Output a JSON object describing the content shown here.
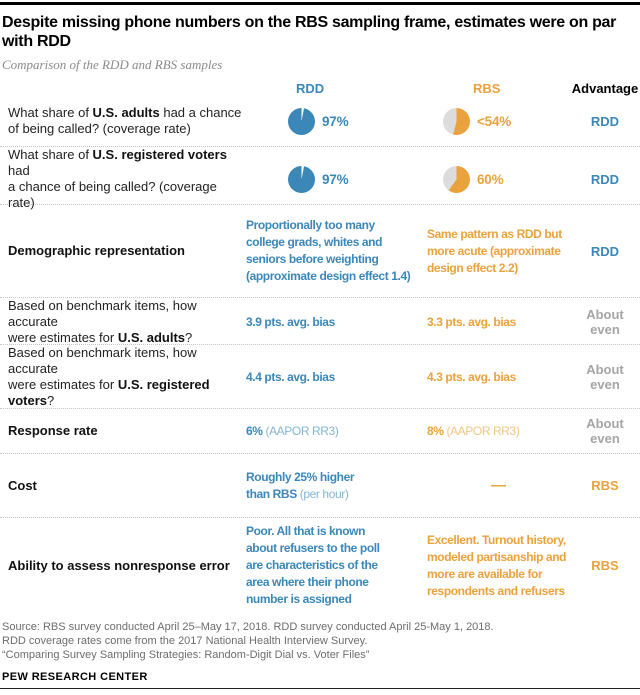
{
  "header": {
    "title": "Despite missing phone numbers on the RBS sampling frame, estimates were on par with RDD",
    "subtitle": "Comparison of the RDD and RBS samples"
  },
  "columns": {
    "rdd": "RDD",
    "rbs": "RBS",
    "advantage": "Advantage"
  },
  "colors": {
    "rdd_blue": "#3a87b8",
    "rdd_blue_light": "#85b5d3",
    "rbs_orange": "#eaa23c",
    "rbs_orange_light": "#f2c67f",
    "pie_gray": "#dcdcdc",
    "advantage_gray": "#a5a5a5"
  },
  "rows": [
    {
      "label": {
        "pre": "What share of ",
        "bold": "U.S. adults",
        "post": " had a chance\nof being called? (coverage rate)"
      },
      "rdd": {
        "value": "97%",
        "pie": [
          {
            "color": "#ffffff",
            "to": 3
          },
          {
            "color": "#3a87b8",
            "to": 100
          }
        ]
      },
      "rbs": {
        "value": "<54%",
        "pie": [
          {
            "color": "#eaa23c",
            "to": 54
          },
          {
            "color": "#dcdcdc",
            "to": 100
          }
        ]
      },
      "adv": "RDD"
    },
    {
      "label": {
        "pre": "What share of ",
        "bold": "U.S. registered voters",
        "post": " had\na chance of being called? (coverage rate)"
      },
      "rdd": {
        "value": "97%",
        "pie": [
          {
            "color": "#ffffff",
            "to": 3
          },
          {
            "color": "#3a87b8",
            "to": 100
          }
        ]
      },
      "rbs": {
        "value": "60%",
        "pie": [
          {
            "color": "#eaa23c",
            "to": 60
          },
          {
            "color": "#dcdcdc",
            "to": 100
          }
        ]
      },
      "adv": "RDD"
    },
    {
      "label": {
        "pre": "",
        "bold": "Demographic representation",
        "post": ""
      },
      "rdd": {
        "text": "Proportionally too many\ncollege grads, whites and\nseniors before weighting\n(approximate design effect 1.4)"
      },
      "rbs": {
        "text": "Same pattern as RDD but\nmore acute (approximate\ndesign effect 2.2)"
      },
      "adv": "RDD"
    },
    {
      "label": {
        "pre": "Based on benchmark items, how accurate\nwere estimates for ",
        "bold": "U.S. adults",
        "post": "?"
      },
      "rdd": {
        "text": "3.9 pts. avg. bias"
      },
      "rbs": {
        "text": "3.3 pts. avg. bias"
      },
      "adv": "About\neven"
    },
    {
      "label": {
        "pre": "Based on benchmark items, how accurate\nwere estimates for ",
        "bold": "U.S. registered voters",
        "post": "?"
      },
      "rdd": {
        "text": "4.4 pts. avg. bias"
      },
      "rbs": {
        "text": "4.3 pts. avg. bias"
      },
      "adv": "About\neven"
    },
    {
      "label": {
        "pre": "",
        "bold": "Response rate",
        "post": ""
      },
      "rdd": {
        "strong": "6%",
        "rest": " (AAPOR RR3)"
      },
      "rbs": {
        "strong": "8%",
        "rest": " (AAPOR RR3)"
      },
      "adv": "About\neven"
    },
    {
      "label": {
        "pre": "",
        "bold": "Cost",
        "post": ""
      },
      "rdd": {
        "strong": "Roughly 25% higher\nthan RBS",
        "rest": " (per hour)"
      },
      "rbs": {
        "dash": "—"
      },
      "adv": "RBS"
    },
    {
      "label": {
        "pre": "",
        "bold": "Ability to assess nonresponse error",
        "post": ""
      },
      "rdd": {
        "text": "Poor. All that is known\nabout refusers to the poll\nare characteristics of the\narea where their phone\nnumber is assigned"
      },
      "rbs": {
        "text": "Excellent. Turnout history,\nmodeled partisanship and\nmore are available for\nrespondents and refusers"
      },
      "adv": "RBS"
    }
  ],
  "footer": {
    "line1": "Source: RBS survey conducted April 25–May 17, 2018. RDD survey conducted April 25-May 1, 2018.",
    "line2": "RDD coverage rates come from the 2017 National Health Interview Survey.",
    "line3": "“Comparing Survey Sampling Strategies: Random-Digit Dial vs. Voter Files”",
    "brand": "PEW RESEARCH CENTER"
  },
  "chart_data": {
    "type": "table",
    "title": "Despite missing phone numbers on the RBS sampling frame, estimates were on par with RDD",
    "subtitle": "Comparison of the RDD and RBS samples",
    "columns": [
      "Question",
      "RDD",
      "RBS",
      "Advantage"
    ],
    "rows": [
      [
        "What share of U.S. adults had a chance of being called? (coverage rate)",
        "97%",
        "<54%",
        "RDD"
      ],
      [
        "What share of U.S. registered voters had a chance of being called? (coverage rate)",
        "97%",
        "60%",
        "RDD"
      ],
      [
        "Demographic representation",
        "Proportionally too many college grads, whites and seniors before weighting (approximate design effect 1.4)",
        "Same pattern as RDD but more acute (approximate design effect 2.2)",
        "RDD"
      ],
      [
        "Based on benchmark items, how accurate were estimates for U.S. adults?",
        "3.9 pts. avg. bias",
        "3.3 pts. avg. bias",
        "About even"
      ],
      [
        "Based on benchmark items, how accurate were estimates for U.S. registered voters?",
        "4.4 pts. avg. bias",
        "4.3 pts. avg. bias",
        "About even"
      ],
      [
        "Response rate",
        "6% (AAPOR RR3)",
        "8% (AAPOR RR3)",
        "About even"
      ],
      [
        "Cost",
        "Roughly 25% higher than RBS (per hour)",
        "—",
        "RBS"
      ],
      [
        "Ability to assess nonresponse error",
        "Poor. All that is known about refusers to the poll are characteristics of the area where their phone number is assigned",
        "Excellent. Turnout history, modeled partisanship and more are available for respondents and refusers",
        "RBS"
      ]
    ],
    "pies": [
      {
        "row": 0,
        "column": "RDD",
        "value_pct": 97,
        "label": "97%"
      },
      {
        "row": 0,
        "column": "RBS",
        "value_pct": 54,
        "label": "<54%"
      },
      {
        "row": 1,
        "column": "RDD",
        "value_pct": 97,
        "label": "97%"
      },
      {
        "row": 1,
        "column": "RBS",
        "value_pct": 60,
        "label": "60%"
      }
    ]
  }
}
